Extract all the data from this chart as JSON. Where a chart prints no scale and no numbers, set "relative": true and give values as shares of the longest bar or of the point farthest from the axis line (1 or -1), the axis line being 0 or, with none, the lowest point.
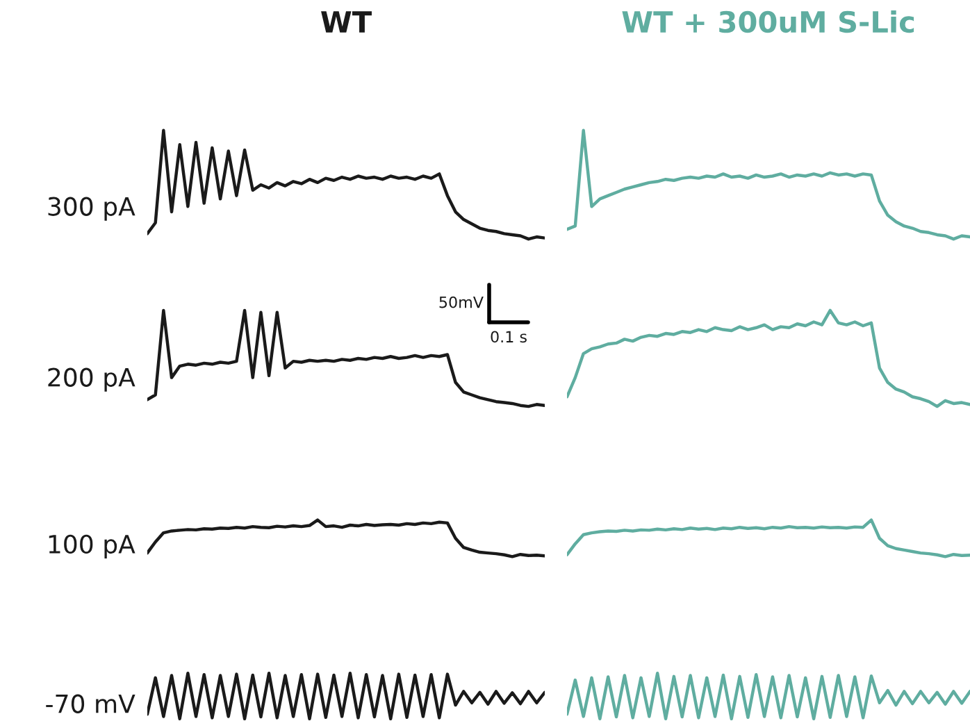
{
  "chart_data": [
    {
      "type": "line",
      "relative": true,
      "title": "WT",
      "ylabel": "300 pA",
      "categories": [
        null,
        null,
        null,
        null,
        null,
        null,
        null,
        null,
        null,
        null,
        null,
        null,
        null,
        null,
        null,
        null,
        null,
        null,
        null,
        null,
        null,
        null,
        null,
        null,
        null,
        null,
        null,
        null,
        null,
        null,
        null,
        null,
        null,
        null,
        null,
        null,
        null,
        null,
        null,
        null,
        null,
        null,
        null,
        null,
        null,
        null,
        null,
        null,
        null,
        null
      ],
      "series": [
        {
          "color": "#1a1a1a",
          "values": [
            0.05,
            0.15,
            1.0,
            0.25,
            0.87,
            0.3,
            0.89,
            0.33,
            0.84,
            0.37,
            0.81,
            0.4,
            0.82,
            0.45,
            0.5,
            0.47,
            0.52,
            0.49,
            0.53,
            0.51,
            0.55,
            0.52,
            0.56,
            0.54,
            0.57,
            0.55,
            0.58,
            0.56,
            0.57,
            0.55,
            0.58,
            0.56,
            0.57,
            0.55,
            0.58,
            0.56,
            0.6,
            0.4,
            0.25,
            0.18,
            0.14,
            0.1,
            0.08,
            0.07,
            0.05,
            0.04,
            0.03,
            0.0,
            0.02,
            0.01
          ]
        }
      ]
    },
    {
      "type": "line",
      "relative": true,
      "title": "WT + 300uM S-Lic",
      "categories": [
        null,
        null,
        null,
        null,
        null,
        null,
        null,
        null,
        null,
        null,
        null,
        null,
        null,
        null,
        null,
        null,
        null,
        null,
        null,
        null,
        null,
        null,
        null,
        null,
        null,
        null,
        null,
        null,
        null,
        null,
        null,
        null,
        null,
        null,
        null,
        null,
        null,
        null,
        null,
        null,
        null,
        null,
        null,
        null,
        null,
        null,
        null,
        null,
        null,
        null
      ],
      "series": [
        {
          "color": "#5fada0",
          "values": [
            0.09,
            0.12,
            1.0,
            0.3,
            0.37,
            0.4,
            0.43,
            0.46,
            0.48,
            0.5,
            0.52,
            0.53,
            0.55,
            0.54,
            0.56,
            0.57,
            0.56,
            0.58,
            0.57,
            0.6,
            0.57,
            0.58,
            0.56,
            0.59,
            0.57,
            0.58,
            0.6,
            0.57,
            0.59,
            0.58,
            0.6,
            0.58,
            0.61,
            0.59,
            0.6,
            0.58,
            0.6,
            0.59,
            0.35,
            0.22,
            0.16,
            0.12,
            0.1,
            0.07,
            0.06,
            0.04,
            0.03,
            0.0,
            0.03,
            0.02
          ]
        }
      ]
    },
    {
      "type": "line",
      "relative": true,
      "ylabel": "200 pA",
      "annotations": [
        "50mV",
        "0.1 s"
      ],
      "categories": [
        null,
        null,
        null,
        null,
        null,
        null,
        null,
        null,
        null,
        null,
        null,
        null,
        null,
        null,
        null,
        null,
        null,
        null,
        null,
        null,
        null,
        null,
        null,
        null,
        null,
        null,
        null,
        null,
        null,
        null,
        null,
        null,
        null,
        null,
        null,
        null,
        null,
        null,
        null,
        null,
        null,
        null,
        null,
        null,
        null,
        null,
        null,
        null,
        null,
        null
      ],
      "series": [
        {
          "color": "#1a1a1a",
          "values": [
            0.07,
            0.12,
            1.0,
            0.3,
            0.42,
            0.44,
            0.43,
            0.45,
            0.44,
            0.46,
            0.45,
            0.47,
            1.0,
            0.3,
            0.98,
            0.32,
            0.98,
            0.4,
            0.47,
            0.46,
            0.48,
            0.47,
            0.48,
            0.47,
            0.49,
            0.48,
            0.5,
            0.49,
            0.51,
            0.5,
            0.52,
            0.5,
            0.51,
            0.53,
            0.51,
            0.53,
            0.52,
            0.54,
            0.25,
            0.15,
            0.12,
            0.09,
            0.07,
            0.05,
            0.04,
            0.03,
            0.01,
            0.0,
            0.02,
            0.01
          ]
        }
      ]
    },
    {
      "type": "line",
      "relative": true,
      "categories": [
        null,
        null,
        null,
        null,
        null,
        null,
        null,
        null,
        null,
        null,
        null,
        null,
        null,
        null,
        null,
        null,
        null,
        null,
        null,
        null,
        null,
        null,
        null,
        null,
        null,
        null,
        null,
        null,
        null,
        null,
        null,
        null,
        null,
        null,
        null,
        null,
        null,
        null,
        null,
        null,
        null,
        null,
        null,
        null,
        null,
        null,
        null,
        null,
        null,
        null
      ],
      "series": [
        {
          "color": "#5fada0",
          "values": [
            0.1,
            0.3,
            0.55,
            0.6,
            0.62,
            0.65,
            0.66,
            0.7,
            0.68,
            0.72,
            0.74,
            0.73,
            0.76,
            0.75,
            0.78,
            0.77,
            0.8,
            0.78,
            0.82,
            0.8,
            0.79,
            0.83,
            0.8,
            0.82,
            0.85,
            0.8,
            0.83,
            0.82,
            0.86,
            0.84,
            0.88,
            0.85,
            1.0,
            0.87,
            0.85,
            0.88,
            0.84,
            0.87,
            0.4,
            0.25,
            0.18,
            0.15,
            0.1,
            0.08,
            0.05,
            0.0,
            0.06,
            0.03,
            0.04,
            0.02
          ]
        }
      ]
    },
    {
      "type": "line",
      "relative": true,
      "ylabel": "100 pA",
      "categories": [
        null,
        null,
        null,
        null,
        null,
        null,
        null,
        null,
        null,
        null,
        null,
        null,
        null,
        null,
        null,
        null,
        null,
        null,
        null,
        null,
        null,
        null,
        null,
        null,
        null,
        null,
        null,
        null,
        null,
        null,
        null,
        null,
        null,
        null,
        null,
        null,
        null,
        null,
        null,
        null,
        null,
        null,
        null,
        null,
        null,
        null,
        null,
        null,
        null,
        null
      ],
      "series": [
        {
          "color": "#1a1a1a",
          "values": [
            0.1,
            0.4,
            0.65,
            0.7,
            0.72,
            0.74,
            0.73,
            0.76,
            0.75,
            0.78,
            0.77,
            0.8,
            0.78,
            0.82,
            0.8,
            0.79,
            0.83,
            0.81,
            0.84,
            0.82,
            0.85,
            1.0,
            0.82,
            0.84,
            0.8,
            0.86,
            0.84,
            0.88,
            0.85,
            0.87,
            0.88,
            0.86,
            0.9,
            0.88,
            0.92,
            0.9,
            0.94,
            0.92,
            0.5,
            0.25,
            0.18,
            0.12,
            0.1,
            0.08,
            0.05,
            0.0,
            0.06,
            0.03,
            0.04,
            0.02
          ]
        }
      ]
    },
    {
      "type": "line",
      "relative": true,
      "categories": [
        null,
        null,
        null,
        null,
        null,
        null,
        null,
        null,
        null,
        null,
        null,
        null,
        null,
        null,
        null,
        null,
        null,
        null,
        null,
        null,
        null,
        null,
        null,
        null,
        null,
        null,
        null,
        null,
        null,
        null,
        null,
        null,
        null,
        null,
        null,
        null,
        null,
        null,
        null,
        null,
        null,
        null,
        null,
        null,
        null,
        null,
        null,
        null,
        null,
        null
      ],
      "series": [
        {
          "color": "#5fada0",
          "values": [
            0.05,
            0.35,
            0.6,
            0.65,
            0.68,
            0.7,
            0.69,
            0.72,
            0.7,
            0.73,
            0.72,
            0.75,
            0.73,
            0.76,
            0.74,
            0.78,
            0.75,
            0.77,
            0.74,
            0.78,
            0.76,
            0.8,
            0.77,
            0.79,
            0.76,
            0.8,
            0.78,
            0.82,
            0.79,
            0.8,
            0.78,
            0.81,
            0.79,
            0.8,
            0.78,
            0.81,
            0.8,
            1.0,
            0.5,
            0.3,
            0.22,
            0.18,
            0.14,
            0.1,
            0.08,
            0.05,
            0.0,
            0.06,
            0.03,
            0.04
          ]
        }
      ]
    },
    {
      "type": "line",
      "relative": true,
      "ylabel": "-70 mV",
      "categories": [
        null,
        null,
        null,
        null,
        null,
        null,
        null,
        null,
        null,
        null,
        null,
        null,
        null,
        null,
        null,
        null,
        null,
        null,
        null,
        null,
        null,
        null,
        null,
        null,
        null,
        null,
        null,
        null,
        null,
        null,
        null,
        null,
        null,
        null,
        null,
        null,
        null,
        null,
        null,
        null,
        null,
        null,
        null,
        null,
        null,
        null,
        null,
        null,
        null,
        null
      ],
      "series": [
        {
          "color": "#1a1a1a",
          "values": [
            0.1,
            0.9,
            0.05,
            0.95,
            0.0,
            1.0,
            0.05,
            0.97,
            0.02,
            0.95,
            0.05,
            0.98,
            0.0,
            0.96,
            0.04,
            1.0,
            0.02,
            0.95,
            0.05,
            0.97,
            0.0,
            0.98,
            0.03,
            0.96,
            0.05,
            1.0,
            0.02,
            0.97,
            0.04,
            0.95,
            0.0,
            0.98,
            0.03,
            0.96,
            0.05,
            0.97,
            0.02,
            0.98,
            0.3,
            0.6,
            0.35,
            0.58,
            0.32,
            0.6,
            0.34,
            0.57,
            0.33,
            0.6,
            0.35,
            0.58
          ]
        }
      ]
    },
    {
      "type": "line",
      "relative": true,
      "categories": [
        null,
        null,
        null,
        null,
        null,
        null,
        null,
        null,
        null,
        null,
        null,
        null,
        null,
        null,
        null,
        null,
        null,
        null,
        null,
        null,
        null,
        null,
        null,
        null,
        null,
        null,
        null,
        null,
        null,
        null,
        null,
        null,
        null,
        null,
        null,
        null,
        null,
        null,
        null,
        null,
        null,
        null,
        null,
        null,
        null,
        null,
        null,
        null,
        null,
        null
      ],
      "series": [
        {
          "color": "#5fada0",
          "values": [
            0.1,
            0.85,
            0.05,
            0.9,
            0.0,
            0.92,
            0.04,
            0.95,
            0.02,
            0.9,
            0.05,
            1.0,
            0.0,
            0.93,
            0.04,
            0.95,
            0.02,
            0.9,
            0.05,
            0.96,
            0.0,
            0.93,
            0.03,
            0.97,
            0.05,
            0.92,
            0.02,
            0.95,
            0.04,
            0.9,
            0.0,
            0.93,
            0.03,
            0.95,
            0.05,
            0.92,
            0.02,
            0.94,
            0.35,
            0.62,
            0.3,
            0.6,
            0.33,
            0.6,
            0.35,
            0.58,
            0.32,
            0.6,
            0.34,
            0.6
          ]
        }
      ]
    }
  ]
}
